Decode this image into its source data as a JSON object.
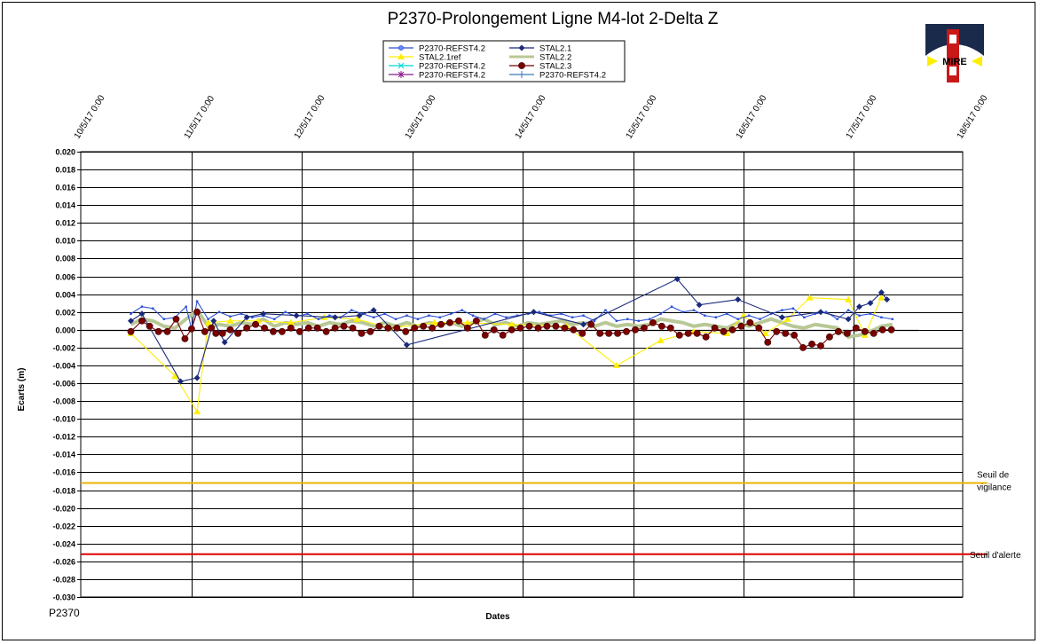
{
  "logo": {
    "text": "MIRE"
  },
  "corner_label": "P2370",
  "colors": {
    "vigilance": "#e8b400",
    "alerte": "#e00000"
  },
  "chart_data": {
    "type": "line",
    "title": "P2370-Prolongement  Ligne  M4-lot  2-Delta  Z",
    "xlabel": "Dates",
    "ylabel": "Ecarts (m)",
    "ylim": [
      -0.03,
      0.02
    ],
    "ystep": 0.002,
    "x_ticks": [
      "10/5/17 0:00",
      "11/5/17 0:00",
      "12/5/17 0:00",
      "13/5/17 0:00",
      "14/5/17 0:00",
      "15/5/17 0:00",
      "16/5/17 0:00",
      "17/5/17 0:00",
      "18/5/17 0:00"
    ],
    "xlim_days": [
      0,
      8
    ],
    "grid": true,
    "legend_position": "top-center",
    "thresholds": [
      {
        "label_lines": [
          "Seuil de",
          "vigilance"
        ],
        "value": -0.0172,
        "color": "#e8b400"
      },
      {
        "label_lines": [
          "Seuil d'alerte"
        ],
        "value": -0.0252,
        "color": "#e00000"
      }
    ],
    "series": [
      {
        "name": "P2370-REFST4.2",
        "color": "#2b4fd8",
        "marker": "circle-open",
        "show_markers": false,
        "x": [
          0.45,
          0.55,
          0.65,
          0.75,
          0.85,
          0.95,
          1.0,
          1.05,
          1.15,
          1.25,
          1.35,
          1.45,
          1.55,
          1.65,
          1.75,
          1.85,
          1.95,
          2.05,
          2.15,
          2.25,
          2.35,
          2.45,
          2.55,
          2.65,
          2.75,
          2.85,
          2.95,
          3.05,
          3.15,
          3.25,
          3.35,
          3.45,
          3.55,
          3.65,
          3.75,
          3.85,
          3.95,
          4.05,
          4.15,
          4.25,
          4.35,
          4.45,
          4.55,
          4.65,
          4.75,
          4.85,
          4.95,
          5.05,
          5.15,
          5.25,
          5.35,
          5.45,
          5.55,
          5.65,
          5.75,
          5.85,
          5.95,
          6.05,
          6.15,
          6.25,
          6.35,
          6.45,
          6.55,
          6.65,
          6.75,
          6.85,
          6.95,
          7.05,
          7.15,
          7.25,
          7.35
        ],
        "y": [
          0.0018,
          0.0026,
          0.0024,
          0.0012,
          0.0014,
          0.0026,
          0.0001,
          0.0032,
          0.0012,
          0.002,
          0.0015,
          0.0018,
          0.0014,
          0.0016,
          0.0012,
          0.002,
          0.0015,
          0.0018,
          0.0012,
          0.0016,
          0.0014,
          0.0022,
          0.0018,
          0.0014,
          0.0018,
          0.0012,
          0.0016,
          0.0012,
          0.0016,
          0.0014,
          0.0018,
          0.0022,
          0.0016,
          0.0012,
          0.0018,
          0.0014,
          0.0016,
          0.0018,
          0.002,
          0.0016,
          0.0018,
          0.0014,
          0.0016,
          0.001,
          0.0022,
          0.001,
          0.0012,
          0.001,
          0.0012,
          0.0018,
          0.0026,
          0.002,
          0.0022,
          0.0016,
          0.0014,
          0.0018,
          0.0012,
          0.0016,
          0.0012,
          0.0018,
          0.0022,
          0.0024,
          0.0014,
          0.0018,
          0.002,
          0.0012,
          0.0022,
          0.0016,
          0.0018,
          0.0014,
          0.0012
        ]
      },
      {
        "name": "STAL2.1",
        "color": "#1a2a7a",
        "marker": "diamond",
        "x": [
          0.45,
          0.55,
          0.9,
          1.05,
          1.2,
          1.3,
          1.5,
          1.65,
          1.95,
          2.3,
          2.52,
          2.65,
          2.95,
          4.1,
          4.55,
          5.4,
          5.6,
          5.95,
          6.35,
          6.7,
          6.95,
          7.05,
          7.15,
          7.25,
          7.3
        ],
        "y": [
          0.001,
          0.0018,
          -0.0058,
          -0.0054,
          0.001,
          -0.0014,
          0.0014,
          0.0018,
          0.0016,
          0.0014,
          0.0016,
          0.0022,
          -0.0017,
          0.002,
          0.0006,
          0.0057,
          0.0028,
          0.0034,
          0.0014,
          0.002,
          0.0012,
          0.0026,
          0.003,
          0.0042,
          0.0034
        ]
      },
      {
        "name": "STAL2.1ref",
        "color": "#ffee00",
        "marker": "triangle",
        "x": [
          0.45,
          0.85,
          1.05,
          1.15,
          1.35,
          1.6,
          1.9,
          2.2,
          2.5,
          2.8,
          3.2,
          3.5,
          3.9,
          4.4,
          4.85,
          5.25,
          5.55,
          5.85,
          6.0,
          6.2,
          6.4,
          6.6,
          6.95,
          7.1,
          7.25
        ],
        "y": [
          -0.0004,
          -0.0052,
          -0.0092,
          0.0008,
          0.001,
          0.001,
          0.0008,
          0.0014,
          0.0012,
          0.0002,
          0.0008,
          0.0008,
          0.0006,
          0.0004,
          -0.004,
          -0.0012,
          -0.0002,
          -0.0004,
          0.0016,
          -0.0004,
          0.0012,
          0.0036,
          0.0034,
          -0.0006,
          0.0036
        ]
      },
      {
        "name": "STAL2.2",
        "color": "#b8c896",
        "marker": "none",
        "width": 4,
        "x": [
          0.45,
          0.55,
          0.65,
          0.75,
          0.85,
          0.95,
          1.05,
          1.15,
          1.25,
          1.35,
          1.45,
          1.55,
          1.65,
          1.75,
          1.85,
          1.95,
          2.05,
          2.15,
          2.25,
          2.35,
          2.45,
          2.55,
          2.65,
          2.75,
          2.85,
          2.95,
          3.05,
          3.15,
          3.25,
          3.35,
          3.45,
          3.55,
          3.65,
          3.75,
          3.85,
          3.95,
          4.05,
          4.15,
          4.25,
          4.35,
          4.45,
          4.55,
          4.65,
          4.75,
          4.85,
          4.95,
          5.05,
          5.15,
          5.25,
          5.35,
          5.45,
          5.55,
          5.65,
          5.75,
          5.85,
          5.95,
          6.05,
          6.15,
          6.25,
          6.35,
          6.45,
          6.55,
          6.65,
          6.75,
          6.85,
          6.95,
          7.05,
          7.15,
          7.25,
          7.35
        ],
        "y": [
          0.0006,
          0.0012,
          0.001,
          0.0004,
          0.0002,
          0.0012,
          0.0022,
          0.0004,
          0.0006,
          0.0004,
          0.0008,
          0.0006,
          0.0012,
          0.0004,
          0.0008,
          0.0006,
          0.0008,
          0.0004,
          0.0008,
          0.0006,
          0.001,
          0.0008,
          0.0004,
          0.0008,
          0.0004,
          0.0008,
          0.0004,
          0.0008,
          0.0006,
          0.0008,
          0.0004,
          0.0008,
          0.0012,
          0.0006,
          0.0008,
          0.0004,
          0.0008,
          0.0006,
          0.0008,
          0.001,
          0.0006,
          0.0008,
          0.0004,
          0.0008,
          0.0004,
          0.0006,
          0.0004,
          0.0006,
          0.0012,
          0.001,
          0.0008,
          0.0004,
          0.0006,
          0.0004,
          0.0002,
          0.0008,
          0.0004,
          0.0008,
          0.0012,
          0.0008,
          0.0004,
          0.0002,
          0.0006,
          0.0004,
          0.0002,
          -0.0008,
          -0.0006,
          -0.0002,
          0.0004,
          0.0006
        ]
      },
      {
        "name": "P2370-REFST4.2",
        "color": "#00d8d8",
        "marker": "x",
        "show_markers": false,
        "x": [],
        "y": []
      },
      {
        "name": "STAL2.3",
        "color": "#7a0000",
        "marker": "circle",
        "x": [
          0.45,
          0.55,
          0.62,
          0.7,
          0.78,
          0.86,
          0.94,
          1.0,
          1.05,
          1.12,
          1.18,
          1.22,
          1.28,
          1.35,
          1.42,
          1.5,
          1.58,
          1.66,
          1.74,
          1.82,
          1.9,
          1.98,
          2.06,
          2.14,
          2.22,
          2.3,
          2.38,
          2.46,
          2.54,
          2.62,
          2.7,
          2.78,
          2.86,
          2.94,
          3.02,
          3.1,
          3.18,
          3.26,
          3.34,
          3.42,
          3.5,
          3.58,
          3.66,
          3.74,
          3.82,
          3.9,
          3.98,
          4.06,
          4.14,
          4.22,
          4.3,
          4.38,
          4.46,
          4.54,
          4.62,
          4.7,
          4.78,
          4.86,
          4.94,
          5.02,
          5.1,
          5.18,
          5.26,
          5.34,
          5.42,
          5.5,
          5.58,
          5.66,
          5.74,
          5.82,
          5.9,
          5.98,
          6.06,
          6.14,
          6.22,
          6.3,
          6.38,
          6.46,
          6.54,
          6.62,
          6.7,
          6.78,
          6.86,
          6.94,
          7.02,
          7.1,
          7.18,
          7.26,
          7.34
        ],
        "y": [
          -0.0002,
          0.001,
          0.0004,
          -0.0002,
          -0.0002,
          0.0012,
          -0.001,
          0.0001,
          0.002,
          -0.0002,
          0.0002,
          -0.0004,
          -0.0004,
          0.0,
          -0.0004,
          0.0002,
          0.0006,
          0.0002,
          -0.0002,
          -0.0002,
          0.0002,
          -0.0002,
          0.0002,
          0.0002,
          -0.0002,
          0.0002,
          0.0004,
          0.0002,
          -0.0004,
          -0.0002,
          0.0004,
          0.0002,
          0.0002,
          -0.0002,
          0.0002,
          0.0004,
          0.0002,
          0.0006,
          0.0008,
          0.001,
          0.0002,
          0.001,
          -0.0006,
          0.0,
          -0.0006,
          0.0,
          0.0002,
          0.0004,
          0.0002,
          0.0004,
          0.0004,
          0.0002,
          0.0,
          -0.0004,
          0.0006,
          -0.0004,
          -0.0004,
          -0.0004,
          -0.0002,
          0.0,
          0.0002,
          0.0008,
          0.0004,
          0.0002,
          -0.0006,
          -0.0004,
          -0.0004,
          -0.0008,
          0.0002,
          -0.0002,
          0.0,
          0.0004,
          0.0008,
          0.0002,
          -0.0014,
          -0.0002,
          -0.0004,
          -0.0006,
          -0.002,
          -0.0016,
          -0.0018,
          -0.0008,
          -0.0002,
          -0.0004,
          0.0002,
          -0.0002,
          -0.0004,
          0.0,
          0.0
        ]
      },
      {
        "name": "P2370-REFST4.2",
        "color": "#8a1a8a",
        "marker": "star",
        "show_markers": false,
        "x": [],
        "y": []
      },
      {
        "name": "P2370-REFST4.2",
        "color": "#3a7ab8",
        "marker": "plus",
        "show_markers": false,
        "x": [],
        "y": []
      }
    ]
  }
}
